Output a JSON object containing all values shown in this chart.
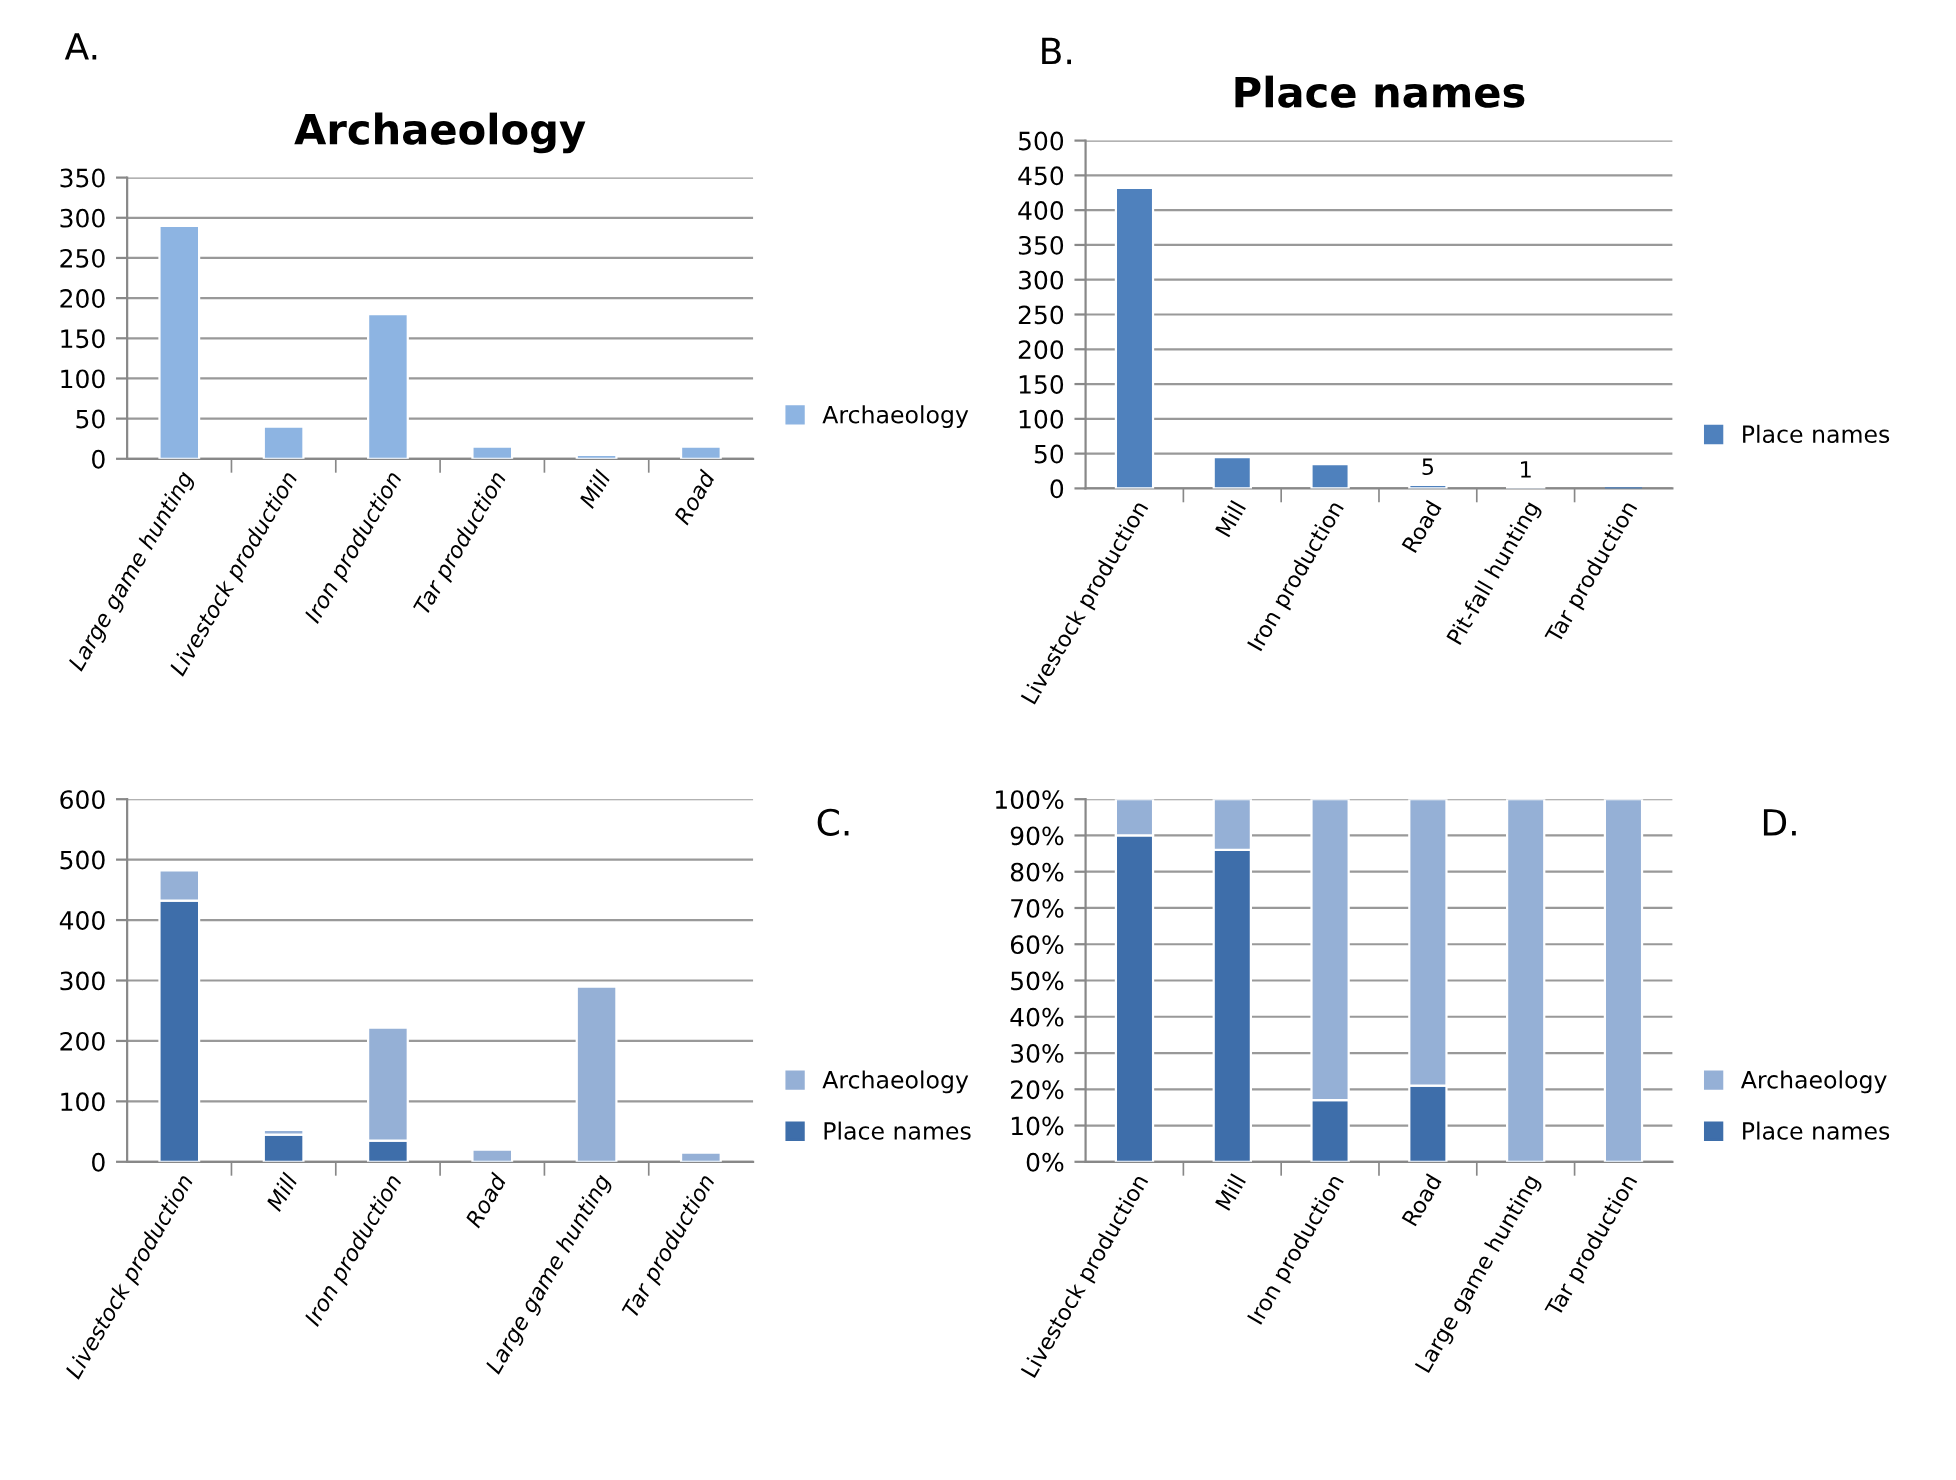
{
  "chart_data": [
    {
      "type": "bar",
      "title": "Archaeology",
      "annotations": [
        "A."
      ],
      "categories": [
        "Large game hunting",
        "Livestock production",
        "Iron production",
        "Tar production",
        "Mill",
        "Road"
      ],
      "series": [
        {
          "name": "Archaeology",
          "color": "#8db4e2",
          "values": [
            290,
            40,
            180,
            15,
            5,
            15
          ]
        }
      ],
      "ylim": [
        0,
        350
      ],
      "yticks": [
        0,
        50,
        100,
        150,
        200,
        250,
        300,
        350
      ],
      "grid": "y",
      "legend": "right"
    },
    {
      "type": "bar",
      "title": "Place names",
      "annotations": [
        "B."
      ],
      "categories": [
        "Livestock production",
        "Mill",
        "Iron production",
        "Road",
        "Pit-fall hunting",
        "Tar production"
      ],
      "series": [
        {
          "name": "Place names",
          "color": "#4f81bd",
          "values": [
            432,
            45,
            35,
            5,
            1,
            0
          ],
          "value_labels": [
            null,
            null,
            null,
            "5",
            "1",
            null
          ]
        }
      ],
      "ylim": [
        0,
        500
      ],
      "yticks": [
        0,
        50,
        100,
        150,
        200,
        250,
        300,
        350,
        400,
        450,
        500
      ],
      "grid": "y",
      "legend": "right"
    },
    {
      "type": "bar",
      "stacked": true,
      "annotations": [
        "C."
      ],
      "categories": [
        "Livestock production",
        "Mill",
        "Iron production",
        "Road",
        "Large game hunting",
        "Tar production"
      ],
      "series": [
        {
          "name": "Place names",
          "color": "#3e6eaa",
          "values": [
            432,
            45,
            35,
            null,
            0,
            0
          ]
        },
        {
          "name": "Archaeology",
          "color": "#95b0d6",
          "values": [
            50,
            8,
            187,
            20,
            290,
            15
          ]
        }
      ],
      "ylim": [
        0,
        600
      ],
      "yticks": [
        0,
        100,
        200,
        300,
        400,
        500,
        600
      ],
      "grid": "y",
      "legend": "right"
    },
    {
      "type": "bar",
      "stacked": true,
      "annotations": [
        "D."
      ],
      "categories": [
        "Livestock production",
        "Mill",
        "Iron production",
        "Road",
        "Large game hunting",
        "Tar production"
      ],
      "series": [
        {
          "name": "Place names",
          "color": "#3e6eaa",
          "values": [
            90,
            86,
            17,
            21,
            0,
            0
          ]
        },
        {
          "name": "Archaeology",
          "color": "#95b0d6",
          "values": [
            10,
            14,
            83,
            79,
            100,
            100
          ]
        }
      ],
      "ylim": [
        0,
        100
      ],
      "yticks": [
        {
          "value": 0,
          "label": "0%"
        },
        {
          "value": 10,
          "label": "10%"
        },
        {
          "value": 20,
          "label": "20%"
        },
        {
          "value": 30,
          "label": "30%"
        },
        {
          "value": 40,
          "label": "40%"
        },
        {
          "value": 50,
          "label": "50%"
        },
        {
          "value": 60,
          "label": "60%"
        },
        {
          "value": 70,
          "label": "70%"
        },
        {
          "value": 80,
          "label": "80%"
        },
        {
          "value": 90,
          "label": "90%"
        },
        {
          "value": 100,
          "label": "100%"
        }
      ],
      "grid": "y",
      "legend": "right"
    }
  ]
}
